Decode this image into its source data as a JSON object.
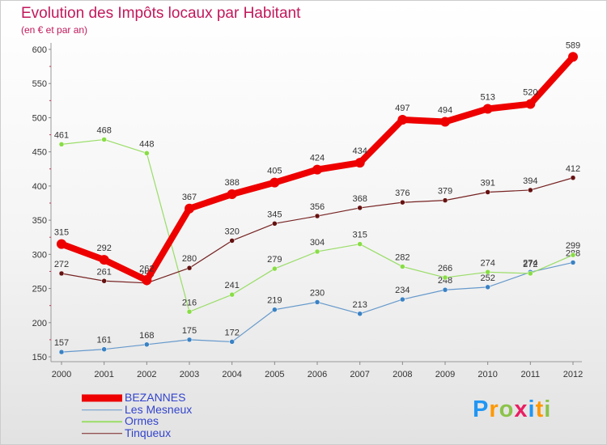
{
  "title": "Evolution des Impôts locaux par Habitant",
  "subtitle": "(en € et par an)",
  "brand": {
    "text": "Proxiti",
    "letters": [
      {
        "ch": "P",
        "color": "#2196f3"
      },
      {
        "ch": "r",
        "color": "#ff9800"
      },
      {
        "ch": "o",
        "color": "#8bc34a"
      },
      {
        "ch": "x",
        "color": "#e91e63"
      },
      {
        "ch": "i",
        "color": "#2196f3"
      },
      {
        "ch": "t",
        "color": "#ff9800"
      },
      {
        "ch": "i",
        "color": "#8bc34a"
      }
    ]
  },
  "chart_data": {
    "type": "line",
    "title": "Evolution des Impôts locaux par Habitant",
    "subtitle": "(en € et par an)",
    "xlabel": "",
    "ylabel": "",
    "x": [
      "2000",
      "2001",
      "2002",
      "2003",
      "2004",
      "2005",
      "2006",
      "2007",
      "2008",
      "2009",
      "2010",
      "2011",
      "2012"
    ],
    "ylim": [
      150,
      600
    ],
    "yticks": [
      150,
      200,
      250,
      300,
      350,
      400,
      450,
      500,
      550,
      600
    ],
    "grid": false,
    "legend_position": "bottom-left",
    "series": [
      {
        "name": "BEZANNES",
        "color": "#ee0000",
        "marker": "#ee0000",
        "width": 8,
        "markerR": 6,
        "values": [
          315,
          292,
          262,
          367,
          388,
          405,
          424,
          434,
          497,
          494,
          513,
          520,
          589
        ]
      },
      {
        "name": "Les Mesneux",
        "color": "#6699cc",
        "marker": "#3a82c4",
        "width": 1.2,
        "markerR": 3,
        "values": [
          157,
          161,
          168,
          175,
          172,
          219,
          230,
          213,
          234,
          248,
          252,
          274,
          288
        ]
      },
      {
        "name": "Ormes",
        "color": "#99dd66",
        "marker": "#88dd44",
        "width": 1.2,
        "markerR": 3,
        "values": [
          461,
          468,
          448,
          216,
          241,
          279,
          304,
          315,
          282,
          266,
          274,
          272,
          299
        ]
      },
      {
        "name": "Tinqueux",
        "color": "#772222",
        "marker": "#661111",
        "width": 1.2,
        "markerR": 3,
        "values": [
          272,
          261,
          258,
          280,
          320,
          345,
          356,
          368,
          376,
          379,
          391,
          394,
          412
        ]
      }
    ]
  }
}
